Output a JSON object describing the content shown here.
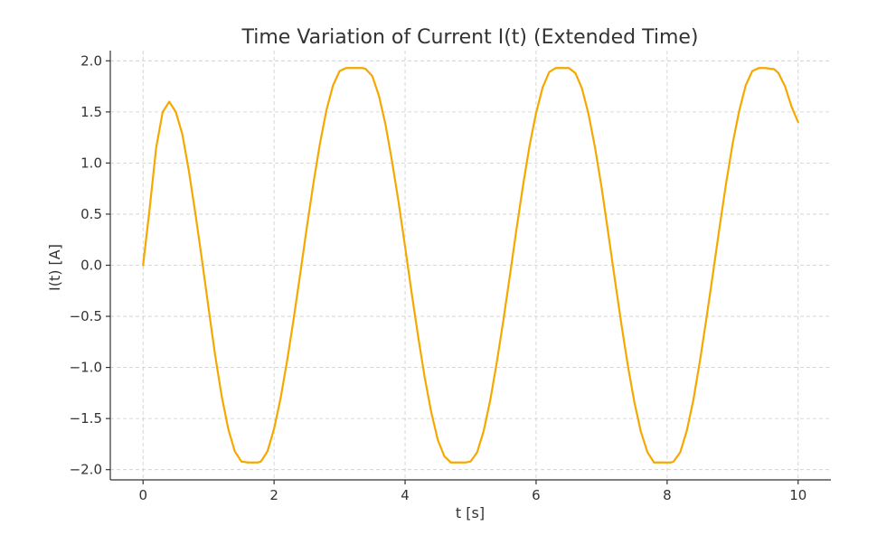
{
  "chart_data": {
    "type": "line",
    "title": "Time Variation of Current I(t) (Extended Time)",
    "xlabel": "t [s]",
    "ylabel": "I(t) [A]",
    "xlim": [
      -0.5,
      10.5
    ],
    "ylim": [
      -2.1,
      2.1
    ],
    "x_ticks": [
      0,
      2,
      4,
      6,
      8,
      10
    ],
    "x_tick_labels": [
      "0",
      "2",
      "4",
      "6",
      "8",
      "10"
    ],
    "y_ticks": [
      2.0,
      1.5,
      1.0,
      0.5,
      0.0,
      -0.5,
      -1.0,
      -1.5,
      -2.0
    ],
    "y_tick_labels": [
      "2.0",
      "1.5",
      "1.0",
      "0.5",
      "0.0",
      "−0.5",
      "−1.0",
      "−1.5",
      "−2.0"
    ],
    "grid": true,
    "colors": {
      "line": "#f5a800"
    },
    "series": [
      {
        "x": [
          0,
          0.1,
          0.2,
          0.3,
          0.4,
          0.5,
          0.6,
          0.7,
          0.8,
          0.9,
          1.0,
          1.1,
          1.2,
          1.3,
          1.4,
          1.5,
          1.6,
          1.7,
          1.75,
          1.8,
          1.9,
          2.0,
          2.1,
          2.2,
          2.3,
          2.4,
          2.5,
          2.6,
          2.7,
          2.8,
          2.9,
          3.0,
          3.1,
          3.2,
          3.3,
          3.35,
          3.4,
          3.5,
          3.6,
          3.7,
          3.8,
          3.9,
          4.0,
          4.1,
          4.2,
          4.3,
          4.4,
          4.5,
          4.6,
          4.7,
          4.8,
          4.9,
          4.92,
          5.0,
          5.1,
          5.2,
          5.3,
          5.4,
          5.5,
          5.6,
          5.7,
          5.8,
          5.9,
          6.0,
          6.1,
          6.2,
          6.3,
          6.4,
          6.5,
          6.6,
          6.7,
          6.8,
          6.9,
          7.0,
          7.1,
          7.2,
          7.3,
          7.4,
          7.5,
          7.6,
          7.7,
          7.8,
          7.9,
          8.0,
          8.06,
          8.1,
          8.2,
          8.3,
          8.4,
          8.5,
          8.6,
          8.7,
          8.8,
          8.9,
          9.0,
          9.1,
          9.2,
          9.3,
          9.4,
          9.5,
          9.6,
          9.63,
          9.7,
          9.8,
          9.9,
          10.0
        ],
        "y": [
          0.0,
          0.55,
          1.15,
          1.5,
          1.6,
          1.5,
          1.28,
          0.92,
          0.5,
          0.05,
          -0.42,
          -0.88,
          -1.28,
          -1.6,
          -1.82,
          -1.92,
          -1.93,
          -1.93,
          -1.93,
          -1.92,
          -1.82,
          -1.6,
          -1.3,
          -0.93,
          -0.52,
          -0.08,
          0.37,
          0.8,
          1.19,
          1.52,
          1.76,
          1.9,
          1.93,
          1.93,
          1.93,
          1.93,
          1.92,
          1.85,
          1.66,
          1.38,
          1.02,
          0.62,
          0.18,
          -0.27,
          -0.7,
          -1.1,
          -1.44,
          -1.71,
          -1.87,
          -1.93,
          -1.93,
          -1.93,
          -1.93,
          -1.92,
          -1.83,
          -1.62,
          -1.32,
          -0.95,
          -0.54,
          -0.1,
          0.35,
          0.78,
          1.17,
          1.49,
          1.74,
          1.89,
          1.93,
          1.93,
          1.93,
          1.88,
          1.73,
          1.48,
          1.15,
          0.76,
          0.32,
          -0.13,
          -0.57,
          -0.98,
          -1.34,
          -1.63,
          -1.83,
          -1.93,
          -1.93,
          -1.93,
          -1.93,
          -1.92,
          -1.83,
          -1.62,
          -1.32,
          -0.94,
          -0.52,
          -0.08,
          0.37,
          0.8,
          1.19,
          1.51,
          1.76,
          1.9,
          1.93,
          1.93,
          1.92,
          1.92,
          1.88,
          1.75,
          1.55,
          1.4
        ]
      }
    ]
  }
}
